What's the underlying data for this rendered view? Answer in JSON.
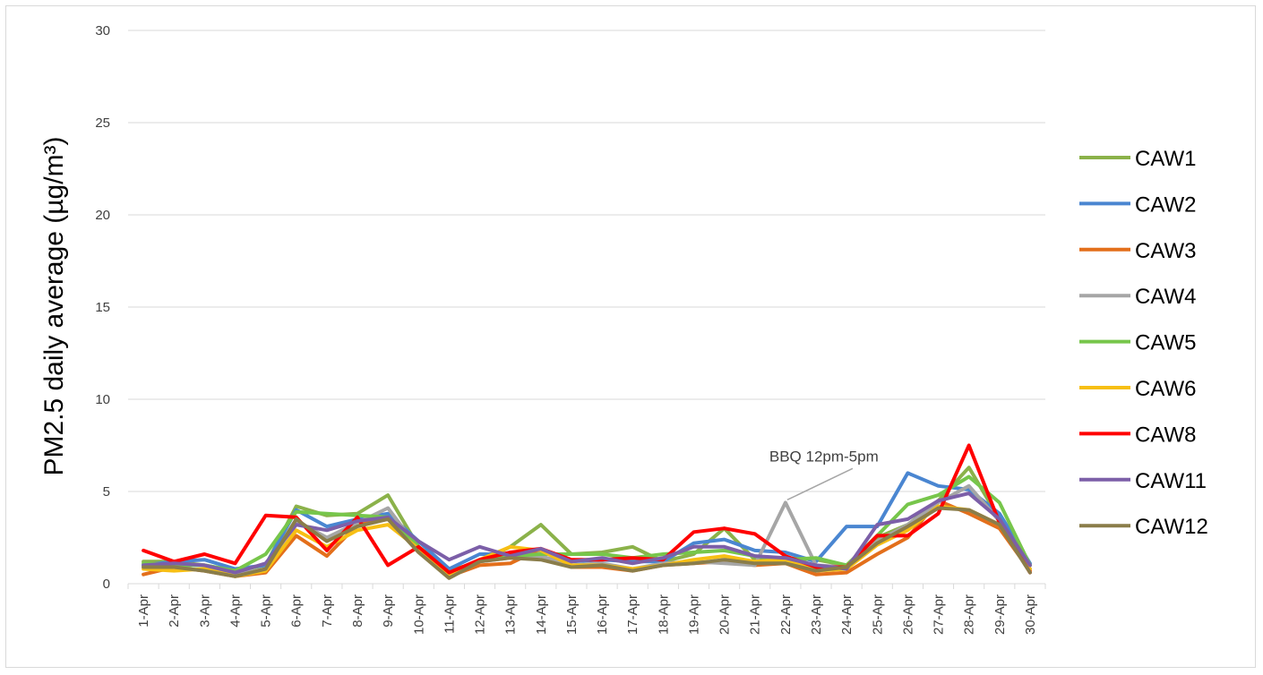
{
  "chart_data": {
    "type": "line",
    "title": "",
    "xlabel": "",
    "ylabel": "PM2.5 daily average (µg/m³)",
    "ylim": [
      0,
      30
    ],
    "yticks": [
      0,
      5,
      10,
      15,
      20,
      25,
      30
    ],
    "grid": true,
    "legend_position": "right",
    "x": [
      "1-Apr",
      "2-Apr",
      "3-Apr",
      "4-Apr",
      "5-Apr",
      "6-Apr",
      "7-Apr",
      "8-Apr",
      "9-Apr",
      "10-Apr",
      "11-Apr",
      "12-Apr",
      "13-Apr",
      "14-Apr",
      "15-Apr",
      "16-Apr",
      "17-Apr",
      "18-Apr",
      "19-Apr",
      "20-Apr",
      "21-Apr",
      "22-Apr",
      "23-Apr",
      "24-Apr",
      "25-Apr",
      "26-Apr",
      "27-Apr",
      "28-Apr",
      "29-Apr",
      "30-Apr"
    ],
    "series": [
      {
        "name": "CAW1",
        "color": "#8bb24a",
        "values": [
          1.2,
          1.2,
          1.0,
          0.7,
          1.0,
          4.2,
          3.7,
          3.8,
          4.8,
          2.0,
          0.7,
          1.2,
          2.0,
          3.2,
          1.6,
          1.7,
          2.0,
          1.2,
          1.6,
          3.0,
          1.3,
          1.4,
          1.3,
          1.0,
          2.5,
          3.2,
          4.5,
          6.3,
          3.5,
          1.0
        ]
      },
      {
        "name": "CAW2",
        "color": "#4a86d1",
        "values": [
          1.0,
          1.2,
          1.3,
          0.8,
          1.0,
          4.0,
          3.1,
          3.5,
          3.8,
          2.3,
          0.8,
          1.6,
          1.6,
          1.8,
          1.2,
          1.3,
          1.2,
          1.2,
          2.2,
          2.4,
          1.8,
          1.7,
          1.2,
          3.1,
          3.1,
          6.0,
          5.3,
          5.1,
          3.8,
          1.1
        ]
      },
      {
        "name": "CAW3",
        "color": "#e36f1b",
        "values": [
          0.5,
          0.9,
          0.7,
          0.4,
          0.6,
          2.6,
          1.5,
          3.2,
          3.5,
          1.8,
          0.4,
          1.0,
          1.1,
          1.9,
          0.9,
          0.9,
          0.7,
          1.0,
          1.1,
          1.2,
          1.0,
          1.1,
          0.5,
          0.6,
          1.6,
          2.5,
          4.5,
          3.8,
          3.0,
          0.7
        ]
      },
      {
        "name": "CAW4",
        "color": "#a6a6a6",
        "values": [
          0.9,
          1.0,
          1.0,
          0.5,
          0.8,
          3.4,
          2.5,
          3.3,
          4.1,
          1.9,
          0.5,
          1.2,
          1.4,
          1.5,
          1.0,
          1.1,
          0.8,
          1.1,
          1.2,
          1.1,
          1.0,
          4.4,
          1.0,
          0.9,
          2.3,
          3.2,
          4.4,
          5.3,
          3.4,
          0.8
        ]
      },
      {
        "name": "CAW5",
        "color": "#77c64b",
        "values": [
          1.1,
          1.0,
          1.0,
          0.7,
          1.6,
          3.9,
          3.8,
          3.7,
          3.6,
          2.0,
          0.5,
          1.3,
          1.5,
          1.6,
          1.6,
          1.6,
          1.4,
          1.6,
          1.7,
          1.8,
          1.5,
          1.3,
          1.4,
          1.0,
          2.6,
          4.3,
          4.8,
          5.8,
          4.4,
          1.0
        ]
      },
      {
        "name": "CAW6",
        "color": "#f7bf14",
        "values": [
          0.8,
          0.7,
          0.8,
          0.4,
          0.7,
          2.9,
          2.0,
          2.9,
          3.2,
          1.9,
          0.4,
          1.3,
          2.0,
          1.8,
          1.0,
          1.0,
          0.8,
          1.0,
          1.3,
          1.5,
          1.2,
          1.3,
          0.7,
          0.8,
          2.1,
          2.9,
          4.2,
          4.0,
          3.2,
          0.8
        ]
      },
      {
        "name": "CAW8",
        "color": "#ff0000",
        "values": [
          1.8,
          1.2,
          1.6,
          1.1,
          3.7,
          3.6,
          1.8,
          3.6,
          1.0,
          2.0,
          0.6,
          1.3,
          1.7,
          1.9,
          1.3,
          1.3,
          1.4,
          1.3,
          2.8,
          3.0,
          2.7,
          1.5,
          0.9,
          0.9,
          2.6,
          2.6,
          3.8,
          7.5,
          3.3,
          0.6
        ]
      },
      {
        "name": "CAW11",
        "color": "#7c5fa8",
        "values": [
          1.0,
          1.1,
          1.0,
          0.6,
          1.1,
          3.2,
          2.9,
          3.4,
          3.6,
          2.3,
          1.3,
          2.0,
          1.5,
          1.9,
          1.2,
          1.4,
          1.1,
          1.4,
          2.0,
          2.0,
          1.5,
          1.4,
          1.0,
          0.8,
          3.2,
          3.5,
          4.5,
          4.9,
          3.5,
          1.0
        ]
      },
      {
        "name": "CAW12",
        "color": "#8a7d4a",
        "values": [
          0.9,
          0.9,
          0.7,
          0.4,
          0.8,
          3.5,
          2.3,
          3.1,
          3.5,
          1.7,
          0.3,
          1.2,
          1.4,
          1.3,
          0.9,
          1.0,
          0.7,
          1.0,
          1.1,
          1.3,
          1.1,
          1.1,
          0.7,
          0.9,
          2.2,
          3.1,
          4.1,
          4.0,
          3.2,
          0.6
        ]
      }
    ],
    "annotations": [
      {
        "text": "BBQ 12pm-5pm",
        "x": "22-Apr",
        "y": 4.4
      }
    ]
  }
}
